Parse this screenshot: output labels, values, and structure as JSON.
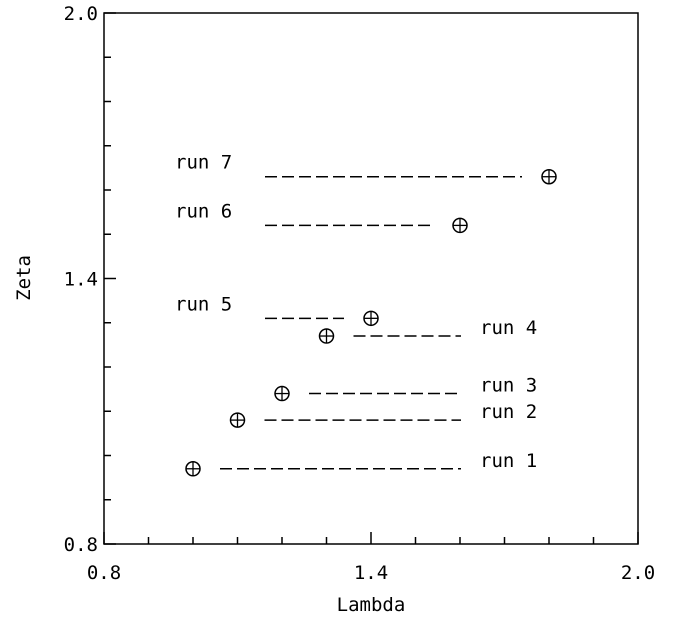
{
  "chart_data": {
    "type": "scatter",
    "xlabel": "Lambda",
    "ylabel": "Zeta",
    "xlim": [
      0.8,
      2.0
    ],
    "ylim": [
      0.8,
      2.0
    ],
    "x_ticks": [
      "0.8",
      "1.4",
      "2.0"
    ],
    "y_ticks": [
      "0.8",
      "1.4",
      "2.0"
    ],
    "x_minor_step": 0.1,
    "y_minor_step": 0.1,
    "grid": false,
    "marker": "circled-plus",
    "points": [
      {
        "label": "run 1",
        "x": 1.0,
        "y": 0.97,
        "label_side": "right"
      },
      {
        "label": "run 2",
        "x": 1.1,
        "y": 1.08,
        "label_side": "right"
      },
      {
        "label": "run 3",
        "x": 1.2,
        "y": 1.14,
        "label_side": "right"
      },
      {
        "label": "run 4",
        "x": 1.3,
        "y": 1.27,
        "label_side": "right"
      },
      {
        "label": "run 5",
        "x": 1.4,
        "y": 1.31,
        "label_side": "left"
      },
      {
        "label": "run 6",
        "x": 1.6,
        "y": 1.52,
        "label_side": "left"
      },
      {
        "label": "run 7",
        "x": 1.8,
        "y": 1.63,
        "label_side": "left"
      }
    ]
  }
}
